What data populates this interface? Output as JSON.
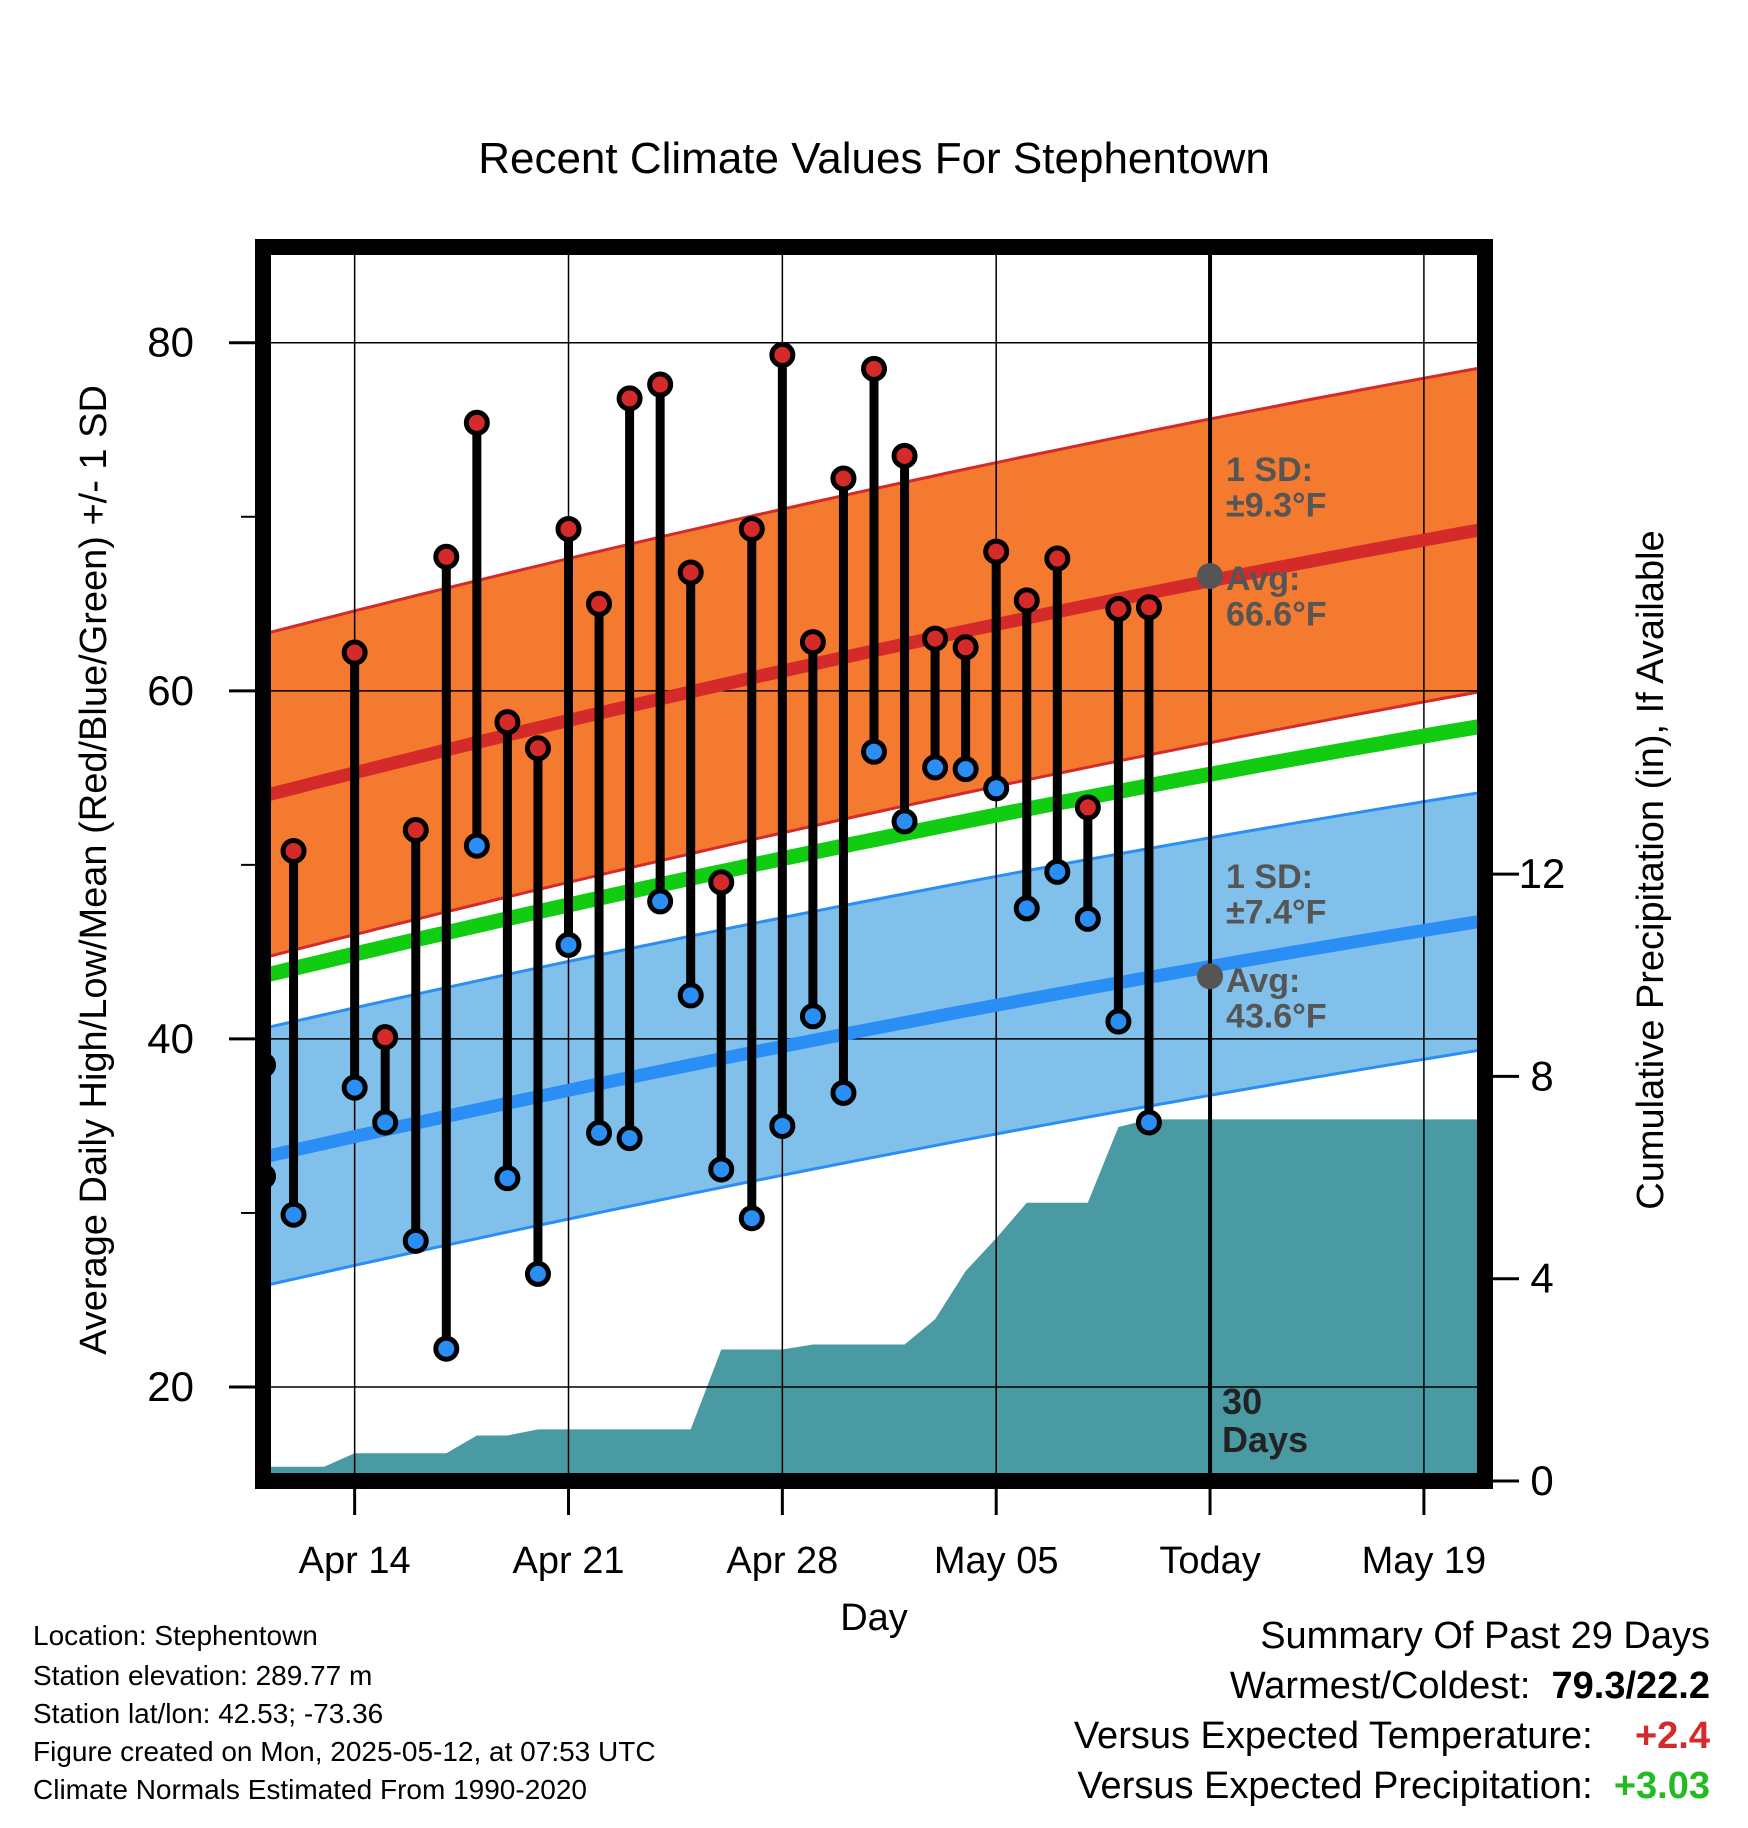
{
  "chart_data": {
    "type": "range-dot-timeseries",
    "title": "Recent Climate Values For Stephentown",
    "xlabel": "Day",
    "ylabel_left": "Average Daily High/Low/Mean (Red/Blue/Green) +/- 1 SD",
    "ylabel_right": "Cumulative Precipitation (in), If Available",
    "x_tick_labels": [
      "Apr 14",
      "Apr 21",
      "Apr 28",
      "May 05",
      "Today",
      "May 19"
    ],
    "x_tick_days": [
      "2025-04-14",
      "2025-04-21",
      "2025-04-28",
      "2025-05-05",
      "2025-05-12",
      "2025-05-19"
    ],
    "y_left_ticks": [
      20,
      40,
      60,
      80
    ],
    "y_right_ticks": [
      0,
      4,
      8,
      12
    ],
    "y_left_range": [
      14.6,
      85.5
    ],
    "y_right_range": [
      0,
      24.4
    ],
    "x_range": [
      "2025-04-11",
      "2025-05-21"
    ],
    "grid": true,
    "today": "2025-05-12",
    "today_label": "30\nDays",
    "days": [
      "2025-04-11",
      "2025-04-12",
      "2025-04-13",
      "2025-04-14",
      "2025-04-15",
      "2025-04-16",
      "2025-04-17",
      "2025-04-18",
      "2025-04-19",
      "2025-04-20",
      "2025-04-21",
      "2025-04-22",
      "2025-04-23",
      "2025-04-24",
      "2025-04-25",
      "2025-04-26",
      "2025-04-27",
      "2025-04-28",
      "2025-04-29",
      "2025-04-30",
      "2025-05-01",
      "2025-05-02",
      "2025-05-03",
      "2025-05-04",
      "2025-05-05",
      "2025-05-06",
      "2025-05-07",
      "2025-05-08",
      "2025-05-09",
      "2025-05-10",
      "2025-05-11",
      "2025-05-12"
    ],
    "highs": [
      38.5,
      50.8,
      null,
      62.2,
      40.1,
      52.0,
      67.7,
      75.4,
      58.2,
      56.7,
      69.3,
      65.0,
      76.8,
      77.6,
      66.8,
      49.0,
      69.3,
      79.3,
      62.8,
      72.2,
      78.5,
      73.5,
      63.0,
      62.5,
      68.0,
      65.2,
      67.6,
      53.3,
      64.7,
      64.8,
      null,
      null
    ],
    "lows": [
      32.1,
      29.9,
      null,
      37.2,
      35.2,
      28.4,
      22.2,
      51.1,
      32.0,
      26.5,
      45.4,
      34.6,
      34.3,
      47.9,
      42.5,
      32.5,
      29.7,
      35.0,
      41.3,
      36.9,
      56.5,
      52.5,
      55.6,
      55.5,
      54.4,
      47.5,
      49.6,
      46.9,
      41.0,
      35.2,
      null,
      null
    ],
    "normals": {
      "start": "2025-04-10",
      "end": "2025-05-21",
      "high_mean": [
        53.5,
        69.3
      ],
      "high_sd": 9.3,
      "low_mean": [
        32.8,
        46.8
      ],
      "low_sd": 7.4,
      "mean": [
        43.2,
        58.0
      ],
      "today_high_avg": 66.6,
      "today_low_avg": 43.6
    },
    "precip_days": [
      "2025-04-10",
      "2025-04-11",
      "2025-04-13",
      "2025-04-14",
      "2025-04-15",
      "2025-04-17",
      "2025-04-18",
      "2025-04-19",
      "2025-04-20",
      "2025-04-21",
      "2025-04-25",
      "2025-04-26",
      "2025-04-28",
      "2025-04-29",
      "2025-05-02",
      "2025-05-03",
      "2025-05-04",
      "2025-05-05",
      "2025-05-06",
      "2025-05-08",
      "2025-05-09",
      "2025-05-10",
      "2025-05-21"
    ],
    "precip_cum": [
      0.0,
      0.28,
      0.28,
      0.55,
      0.55,
      0.55,
      0.9,
      0.9,
      1.02,
      1.02,
      1.02,
      2.6,
      2.6,
      2.7,
      2.7,
      3.2,
      4.15,
      4.8,
      5.5,
      5.5,
      7.0,
      7.15,
      7.15
    ],
    "annotations": {
      "high_sd": "1 SD:\n±9.3°F",
      "high_avg": "Avg:\n66.6°F",
      "low_sd": "1 SD:\n±7.4°F",
      "low_avg": "Avg:\n43.6°F"
    },
    "colors": {
      "high": "#d42a2a",
      "low": "#2a8ef5",
      "mean": "#11cc11",
      "high_band": "#f47a30",
      "low_band": "#80c0ea",
      "precip": "#4a9aa4",
      "annotation": "#555555"
    }
  },
  "info": {
    "location": "Location: Stephentown",
    "elevation": "Station elevation: 289.77 m",
    "latlon": "Station lat/lon: 42.53; -73.36",
    "created": "Figure created on Mon, 2025-05-12, at 07:53 UTC",
    "normals": "Climate Normals Estimated From 1990-2020"
  },
  "summary": {
    "title": "Summary Of Past 29 Days",
    "warm_cold_label": "Warmest/Coldest:",
    "warm_cold_value": "79.3/22.2",
    "temp_label": "Versus Expected Temperature:",
    "temp_value": "+2.4",
    "precip_label": "Versus Expected Precipitation:",
    "precip_value": "+3.03"
  }
}
